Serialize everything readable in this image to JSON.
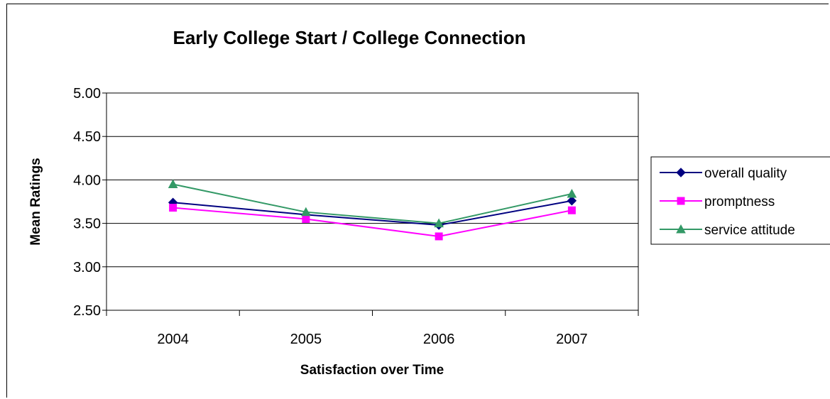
{
  "chart_data": {
    "type": "line",
    "title": "Early College Start / College Connection",
    "xlabel": "Satisfaction over Time",
    "ylabel": "Mean Ratings",
    "categories": [
      "2004",
      "2005",
      "2006",
      "2007"
    ],
    "ylim": [
      2.5,
      5.0
    ],
    "yticks": [
      "2.50",
      "3.00",
      "3.50",
      "4.00",
      "4.50",
      "5.00"
    ],
    "ytick_values": [
      2.5,
      3.0,
      3.5,
      4.0,
      4.5,
      5.0
    ],
    "grid": true,
    "legend_position": "right",
    "series": [
      {
        "name": "overall quality",
        "values": [
          3.74,
          3.6,
          3.48,
          3.76
        ],
        "color": "#000080",
        "marker": "diamond"
      },
      {
        "name": "promptness",
        "values": [
          3.68,
          3.55,
          3.35,
          3.65
        ],
        "color": "#ff00ff",
        "marker": "square"
      },
      {
        "name": "service attitude",
        "values": [
          3.95,
          3.63,
          3.5,
          3.84
        ],
        "color": "#339966",
        "marker": "triangle"
      }
    ]
  }
}
